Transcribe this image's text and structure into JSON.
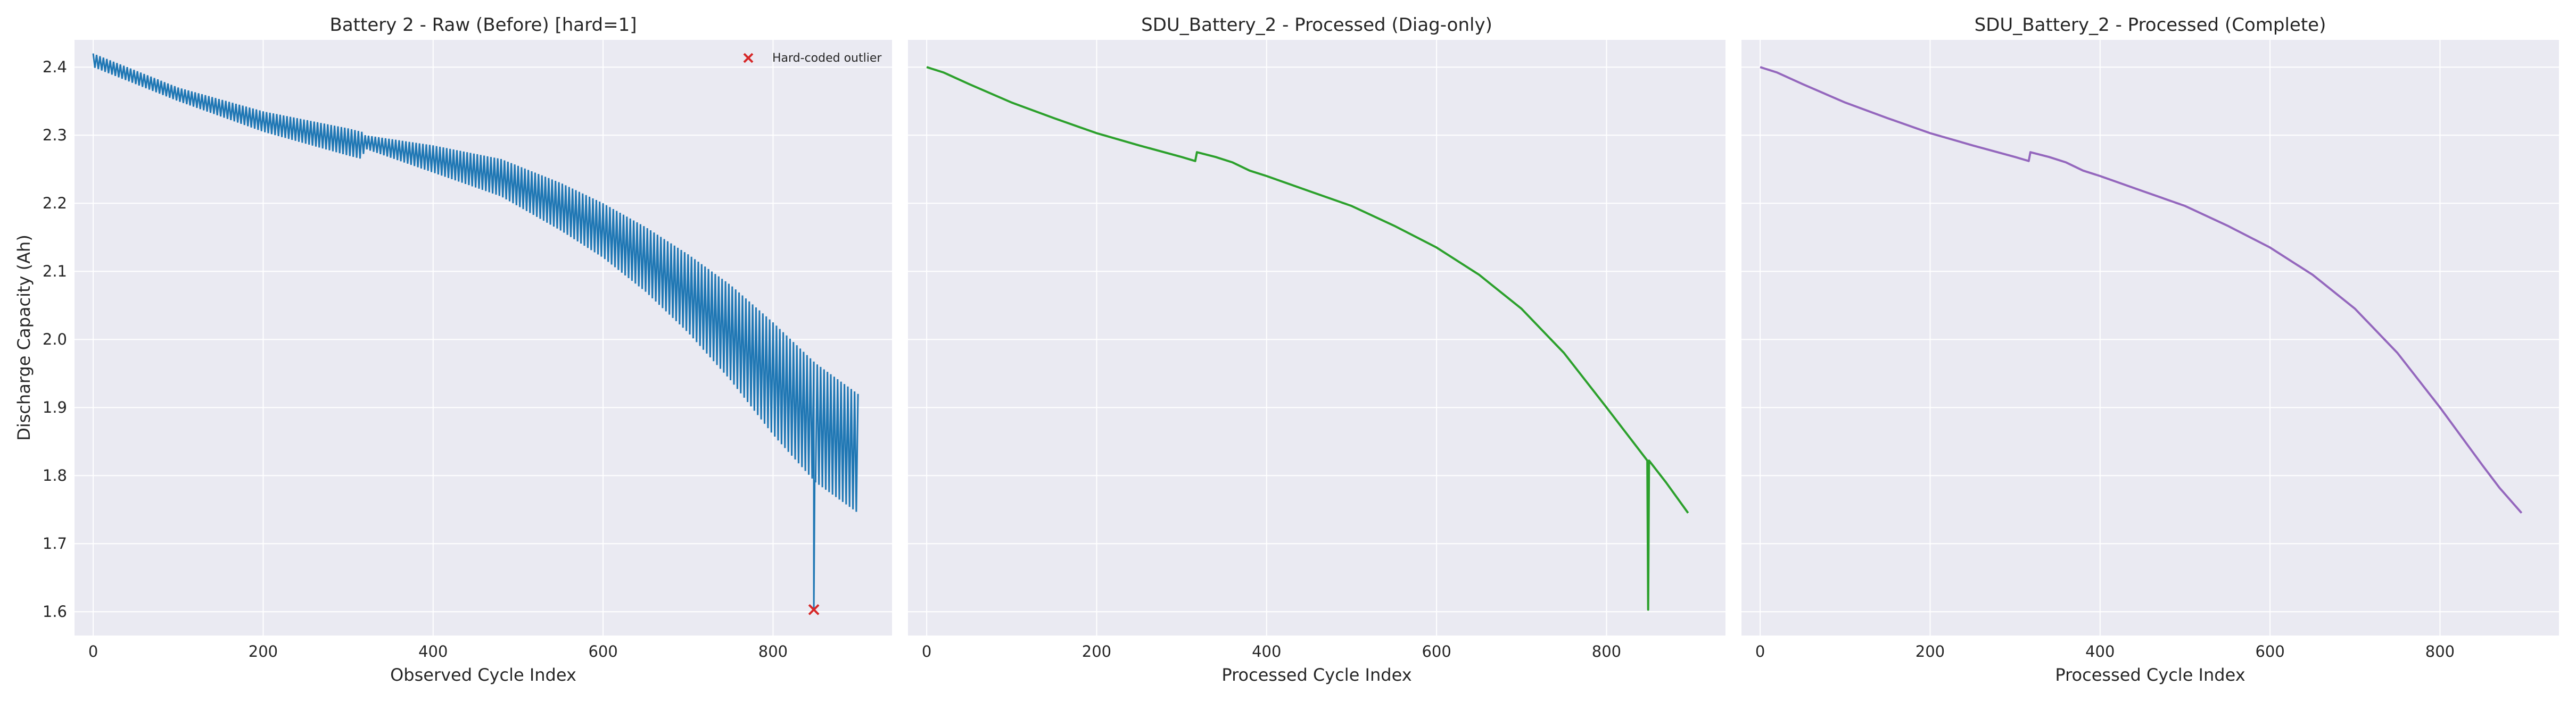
{
  "figure": {
    "background": "#ffffff",
    "axes_background": "#eaeaf2",
    "grid_color": "#ffffff"
  },
  "chart_data": [
    {
      "type": "line",
      "title": "Battery 2 - Raw (Before)  [hard=1]",
      "xlabel": "Observed Cycle Index",
      "ylabel": "Discharge Capacity (Ah)",
      "xlim": [
        -22,
        940
      ],
      "ylim": [
        1.565,
        2.44
      ],
      "xticks": [
        0,
        200,
        400,
        600,
        800
      ],
      "yticks": [
        1.6,
        1.7,
        1.8,
        1.9,
        2.0,
        2.1,
        2.2,
        2.3,
        2.4
      ],
      "grid": true,
      "legend_position": "top-right",
      "color": "#1f77b4",
      "oscillating": true,
      "oscillation_period": 4,
      "upper_envelope": [
        [
          0,
          2.42
        ],
        [
          100,
          2.37
        ],
        [
          200,
          2.335
        ],
        [
          300,
          2.31
        ],
        [
          316,
          2.305
        ],
        [
          320,
          2.3
        ],
        [
          400,
          2.285
        ],
        [
          480,
          2.265
        ],
        [
          550,
          2.23
        ],
        [
          600,
          2.2
        ],
        [
          650,
          2.165
        ],
        [
          700,
          2.125
        ],
        [
          750,
          2.08
        ],
        [
          800,
          2.025
        ],
        [
          850,
          1.965
        ],
        [
          900,
          1.92
        ]
      ],
      "lower_envelope": [
        [
          0,
          2.4
        ],
        [
          100,
          2.35
        ],
        [
          200,
          2.305
        ],
        [
          300,
          2.27
        ],
        [
          316,
          2.265
        ],
        [
          320,
          2.28
        ],
        [
          400,
          2.245
        ],
        [
          480,
          2.21
        ],
        [
          550,
          2.16
        ],
        [
          600,
          2.12
        ],
        [
          650,
          2.07
        ],
        [
          700,
          2.01
        ],
        [
          750,
          1.94
        ],
        [
          800,
          1.86
        ],
        [
          850,
          1.79
        ],
        [
          900,
          1.745
        ]
      ],
      "outlier": {
        "x": 848,
        "y": 1.603,
        "label": "Hard-coded outlier",
        "color": "#d62728",
        "marker": "x"
      }
    },
    {
      "type": "line",
      "title": "SDU_Battery_2 - Processed (Diag-only)",
      "xlabel": "Processed Cycle Index",
      "ylabel": "",
      "xlim": [
        -22,
        940
      ],
      "ylim": [
        1.565,
        2.44
      ],
      "xticks": [
        0,
        200,
        400,
        600,
        800
      ],
      "grid": true,
      "color": "#2ca02c",
      "series": [
        {
          "x": [
            0,
            20,
            50,
            100,
            150,
            200,
            250,
            300,
            316,
            318,
            340,
            360,
            380,
            400,
            450,
            500,
            550,
            600,
            650,
            700,
            750,
            800,
            848,
            848,
            849,
            850,
            870,
            896
          ],
          "y": [
            2.4,
            2.392,
            2.375,
            2.348,
            2.325,
            2.303,
            2.285,
            2.268,
            2.262,
            2.275,
            2.268,
            2.26,
            2.248,
            2.24,
            2.218,
            2.196,
            2.167,
            2.135,
            2.095,
            2.045,
            1.98,
            1.9,
            1.822,
            1.822,
            1.603,
            1.822,
            1.79,
            1.745
          ]
        }
      ]
    },
    {
      "type": "line",
      "title": "SDU_Battery_2 - Processed (Complete)",
      "xlabel": "Processed Cycle Index",
      "ylabel": "",
      "xlim": [
        -22,
        940
      ],
      "ylim": [
        1.565,
        2.44
      ],
      "xticks": [
        0,
        200,
        400,
        600,
        800
      ],
      "grid": true,
      "color": "#9467bd",
      "series": [
        {
          "x": [
            0,
            20,
            50,
            100,
            150,
            200,
            250,
            300,
            316,
            318,
            340,
            360,
            380,
            400,
            450,
            500,
            550,
            600,
            650,
            700,
            750,
            800,
            850,
            870,
            896
          ],
          "y": [
            2.4,
            2.392,
            2.375,
            2.348,
            2.325,
            2.303,
            2.285,
            2.268,
            2.262,
            2.275,
            2.268,
            2.26,
            2.248,
            2.24,
            2.218,
            2.196,
            2.167,
            2.135,
            2.095,
            2.045,
            1.98,
            1.9,
            1.815,
            1.782,
            1.745
          ]
        }
      ]
    }
  ]
}
